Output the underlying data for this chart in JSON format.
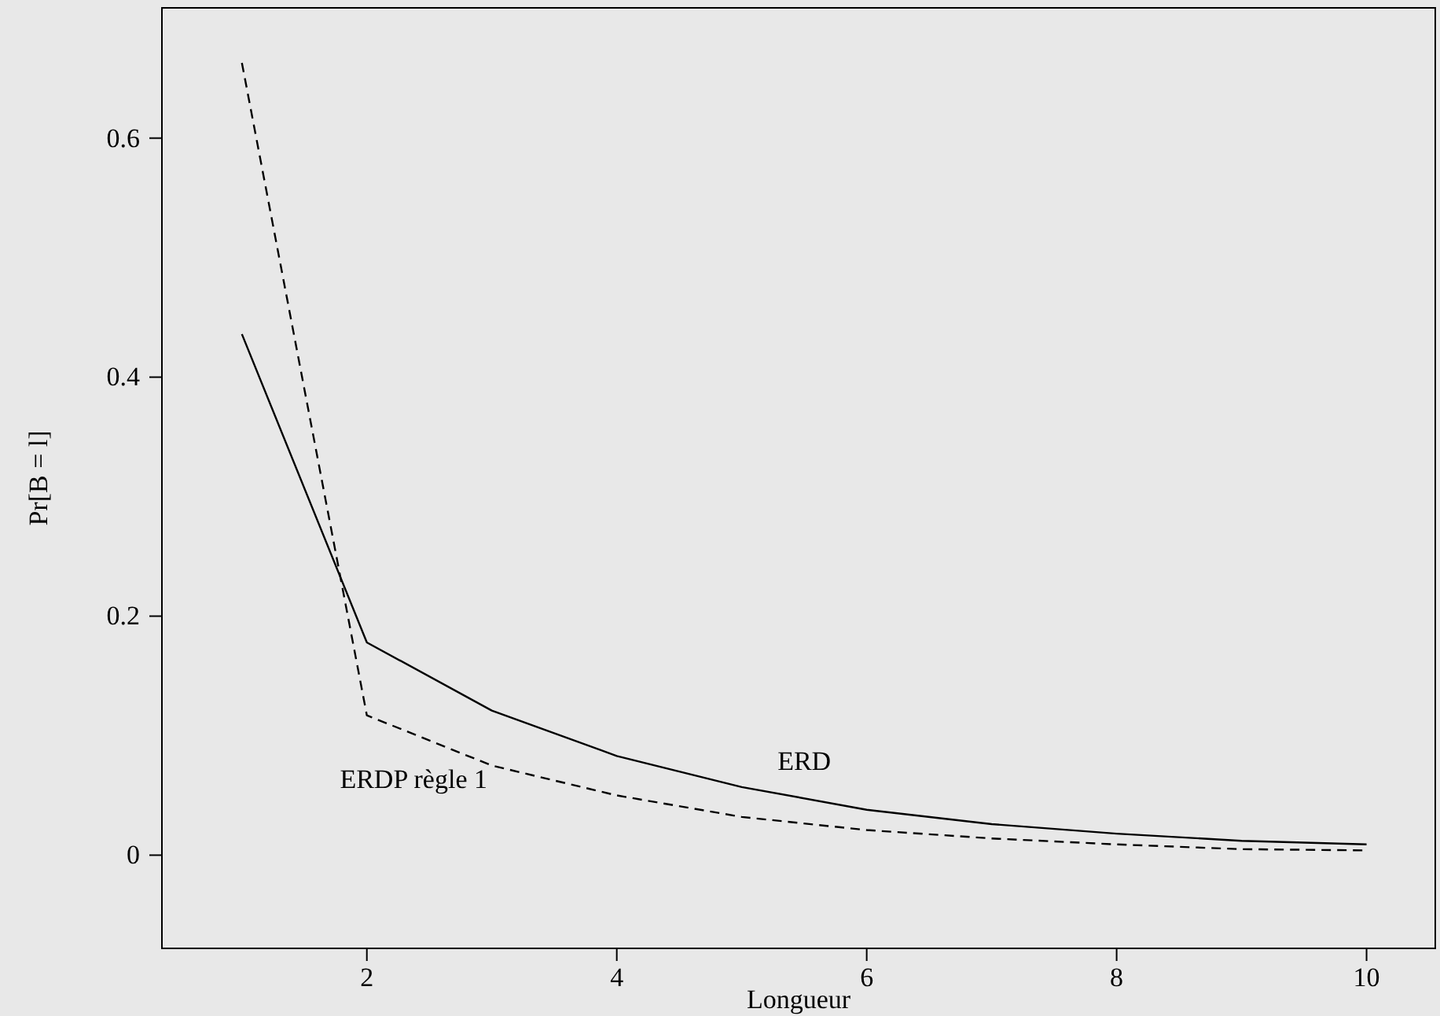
{
  "chart_data": {
    "type": "line",
    "xlabel": "Longueur",
    "ylabel": "Pr[B = l]",
    "x": [
      1,
      2,
      3,
      4,
      5,
      6,
      7,
      8,
      9,
      10
    ],
    "xlim": [
      0.36,
      10.55
    ],
    "xticks": [
      2,
      4,
      6,
      8,
      10
    ],
    "ylim": [
      -0.078,
      0.709
    ],
    "yticks": [
      0,
      0.2,
      0.4,
      0.6
    ],
    "grid": false,
    "marker": "none",
    "series": [
      {
        "name": "ERD",
        "color": "#000000",
        "line_style": "solid",
        "values": [
          0.436,
          0.178,
          0.121,
          0.083,
          0.057,
          0.038,
          0.026,
          0.018,
          0.012,
          0.009
        ]
      },
      {
        "name": "ERDP règle 1",
        "color": "#000000",
        "line_style": "dashed",
        "values": [
          0.663,
          0.117,
          0.075,
          0.05,
          0.032,
          0.021,
          0.014,
          0.009,
          0.005,
          0.004
        ]
      }
    ]
  }
}
